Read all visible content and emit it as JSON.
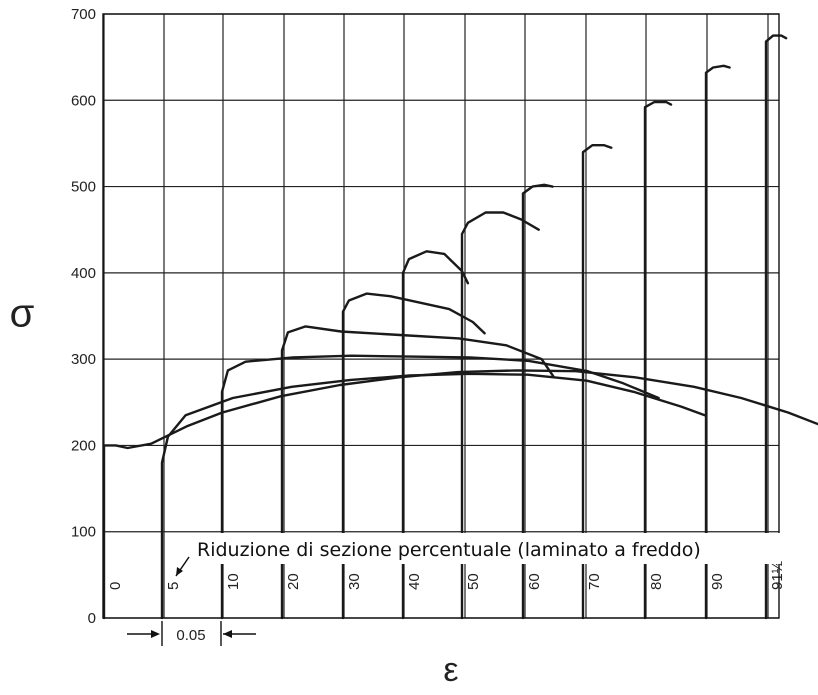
{
  "chart_data": {
    "type": "line",
    "ylabel": "σ",
    "xlabel": "ε",
    "ylim": [
      0,
      700
    ],
    "y_ticks": [
      0,
      100,
      200,
      300,
      400,
      500,
      600,
      700
    ],
    "annotation": "Riduzione di sezione percentuale (laminato a freddo)",
    "scale_marker": "0.05",
    "grid": true,
    "series": [
      {
        "label": "0",
        "points": [
          [
            0.0,
            0
          ],
          [
            0.0,
            200
          ],
          [
            0.01,
            200
          ],
          [
            0.02,
            197
          ],
          [
            0.04,
            202
          ],
          [
            0.07,
            222
          ],
          [
            0.1,
            238
          ],
          [
            0.15,
            257
          ],
          [
            0.2,
            270
          ],
          [
            0.25,
            279
          ],
          [
            0.3,
            285
          ],
          [
            0.35,
            287
          ],
          [
            0.4,
            286
          ],
          [
            0.45,
            279
          ],
          [
            0.5,
            268
          ],
          [
            0.54,
            255
          ],
          [
            0.58,
            238
          ],
          [
            0.61,
            222
          ]
        ]
      },
      {
        "label": "5",
        "points": [
          [
            0.0,
            0
          ],
          [
            0.0,
            180
          ],
          [
            0.005,
            210
          ],
          [
            0.02,
            235
          ],
          [
            0.06,
            255
          ],
          [
            0.11,
            268
          ],
          [
            0.16,
            276
          ],
          [
            0.21,
            281
          ],
          [
            0.26,
            283
          ],
          [
            0.31,
            282
          ],
          [
            0.36,
            275
          ],
          [
            0.4,
            262
          ],
          [
            0.44,
            245
          ],
          [
            0.46,
            235
          ]
        ]
      },
      {
        "label": "10",
        "points": [
          [
            0.0,
            0
          ],
          [
            0.0,
            262
          ],
          [
            0.005,
            287
          ],
          [
            0.02,
            297
          ],
          [
            0.06,
            302
          ],
          [
            0.11,
            304
          ],
          [
            0.16,
            303
          ],
          [
            0.21,
            302
          ],
          [
            0.26,
            298
          ],
          [
            0.31,
            286
          ],
          [
            0.34,
            272
          ],
          [
            0.37,
            255
          ]
        ]
      },
      {
        "label": "20",
        "points": [
          [
            0.0,
            0
          ],
          [
            0.0,
            310
          ],
          [
            0.005,
            331
          ],
          [
            0.02,
            338
          ],
          [
            0.05,
            332
          ],
          [
            0.1,
            328
          ],
          [
            0.15,
            324
          ],
          [
            0.19,
            316
          ],
          [
            0.22,
            300
          ],
          [
            0.23,
            280
          ]
        ]
      },
      {
        "label": "30",
        "points": [
          [
            0.0,
            0
          ],
          [
            0.0,
            355
          ],
          [
            0.005,
            368
          ],
          [
            0.02,
            376
          ],
          [
            0.04,
            373
          ],
          [
            0.06,
            367
          ],
          [
            0.09,
            358
          ],
          [
            0.11,
            343
          ],
          [
            0.12,
            330
          ]
        ]
      },
      {
        "label": "40",
        "points": [
          [
            0.0,
            0
          ],
          [
            0.0,
            400
          ],
          [
            0.005,
            416
          ],
          [
            0.02,
            425
          ],
          [
            0.035,
            422
          ],
          [
            0.05,
            402
          ],
          [
            0.055,
            388
          ]
        ]
      },
      {
        "label": "50",
        "points": [
          [
            0.0,
            0
          ],
          [
            0.0,
            445
          ],
          [
            0.005,
            458
          ],
          [
            0.02,
            470
          ],
          [
            0.035,
            470
          ],
          [
            0.05,
            462
          ],
          [
            0.065,
            450
          ]
        ]
      },
      {
        "label": "60",
        "points": [
          [
            0.0,
            0
          ],
          [
            0.0,
            492
          ],
          [
            0.008,
            500
          ],
          [
            0.018,
            502
          ],
          [
            0.025,
            500
          ]
        ]
      },
      {
        "label": "70",
        "points": [
          [
            0.0,
            0
          ],
          [
            0.0,
            540
          ],
          [
            0.008,
            548
          ],
          [
            0.018,
            548
          ],
          [
            0.024,
            545
          ]
        ]
      },
      {
        "label": "80",
        "points": [
          [
            0.0,
            0
          ],
          [
            0.0,
            592
          ],
          [
            0.008,
            598
          ],
          [
            0.018,
            598
          ],
          [
            0.022,
            595
          ]
        ]
      },
      {
        "label": "90",
        "points": [
          [
            0.0,
            0
          ],
          [
            0.0,
            632
          ],
          [
            0.006,
            638
          ],
          [
            0.015,
            640
          ],
          [
            0.02,
            638
          ]
        ]
      },
      {
        "label": "91½",
        "points": [
          [
            0.0,
            0
          ],
          [
            0.0,
            668
          ],
          [
            0.006,
            675
          ],
          [
            0.013,
            675
          ],
          [
            0.017,
            672
          ]
        ]
      }
    ]
  }
}
